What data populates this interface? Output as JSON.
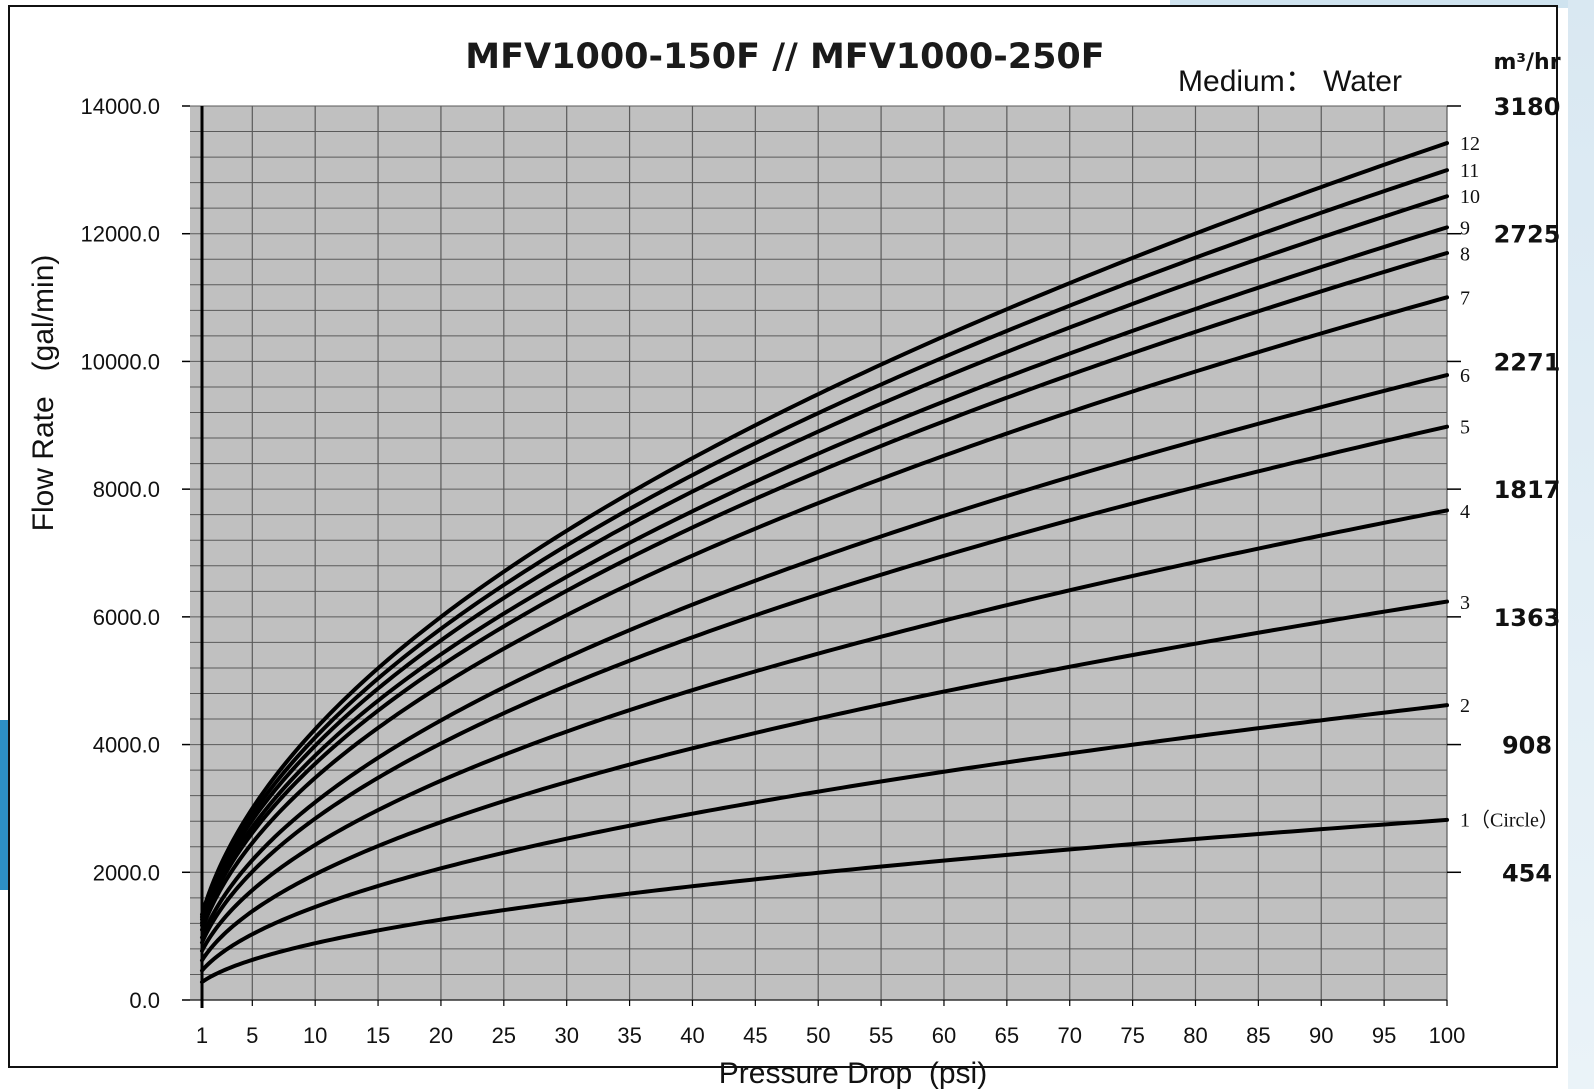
{
  "chart_data": {
    "type": "line",
    "title": "MFV1000-150F // MFV1000-250F",
    "subtitle": "Medium： Water",
    "xlabel": "Pressure Drop  (psi)",
    "ylabel": "Flow Rate   (gal/min)",
    "xlim": [
      1,
      100
    ],
    "ylim": [
      0,
      14000
    ],
    "x_ticks": [
      1,
      5,
      10,
      15,
      20,
      25,
      30,
      35,
      40,
      45,
      50,
      55,
      60,
      65,
      70,
      75,
      80,
      85,
      90,
      95,
      100
    ],
    "y_ticks": [
      0,
      2000,
      4000,
      6000,
      8000,
      10000,
      12000,
      14000
    ],
    "y_tick_labels": [
      "0.0",
      "2000.0",
      "4000.0",
      "6000.0",
      "8000.0",
      "10000.0",
      "12000.0",
      "14000.0"
    ],
    "secondary_y": {
      "unit_label": "m³/hr",
      "ticks": [
        {
          "label": "454",
          "gpm": 2000
        },
        {
          "label": "908",
          "gpm": 4000
        },
        {
          "label": "1363",
          "gpm": 6000
        },
        {
          "label": "1817",
          "gpm": 8000
        },
        {
          "label": "2271",
          "gpm": 10000
        },
        {
          "label": "2725",
          "gpm": 12000
        },
        {
          "label": "3180",
          "gpm": 14000
        }
      ]
    },
    "grid": true,
    "x": [
      1,
      5,
      10,
      20,
      30,
      40,
      50,
      60,
      70,
      80,
      90,
      100
    ],
    "series": [
      {
        "name": "1（Circle）",
        "values": [
          280,
          630,
          890,
          1260,
          1540,
          1780,
          1990,
          2180,
          2360,
          2520,
          2670,
          2830
        ]
      },
      {
        "name": "2",
        "values": [
          460,
          1030,
          1460,
          2060,
          2520,
          2920,
          3260,
          3580,
          3860,
          4130,
          4380,
          4620
        ]
      },
      {
        "name": "3",
        "values": [
          620,
          1390,
          1970,
          2790,
          3410,
          3940,
          4410,
          4830,
          5220,
          5580,
          5920,
          6230
        ]
      },
      {
        "name": "4",
        "values": [
          770,
          1720,
          2430,
          3430,
          4200,
          4850,
          5430,
          5940,
          6420,
          6860,
          7280,
          7660
        ]
      },
      {
        "name": "5",
        "values": [
          900,
          2010,
          2840,
          4010,
          4910,
          5680,
          6350,
          6960,
          7520,
          8040,
          8520,
          8980
        ]
      },
      {
        "name": "6",
        "values": [
          980,
          2190,
          3100,
          4380,
          5360,
          6190,
          6920,
          7580,
          8190,
          8750,
          9290,
          9790
        ]
      },
      {
        "name": "7",
        "values": [
          1100,
          2460,
          3480,
          4920,
          6030,
          6960,
          7780,
          8520,
          9210,
          9840,
          10440,
          11000
        ]
      },
      {
        "name": "8",
        "values": [
          1170,
          2620,
          3700,
          5230,
          6410,
          7400,
          8270,
          9060,
          9790,
          10460,
          11100,
          11700
        ]
      },
      {
        "name": "9",
        "values": [
          1210,
          2710,
          3830,
          5410,
          6630,
          7650,
          8560,
          9370,
          10120,
          10820,
          11480,
          12100
        ]
      },
      {
        "name": "10",
        "values": [
          1260,
          2820,
          3980,
          5630,
          6900,
          7960,
          8900,
          9750,
          10530,
          11260,
          11940,
          12590
        ]
      },
      {
        "name": "11",
        "values": [
          1300,
          2910,
          4110,
          5810,
          7120,
          8220,
          9190,
          10070,
          10870,
          11620,
          12330,
          13000
        ]
      },
      {
        "name": "12",
        "values": [
          1340,
          3000,
          4240,
          6000,
          7350,
          8490,
          9490,
          10390,
          11220,
          12000,
          12730,
          13420
        ]
      }
    ]
  }
}
